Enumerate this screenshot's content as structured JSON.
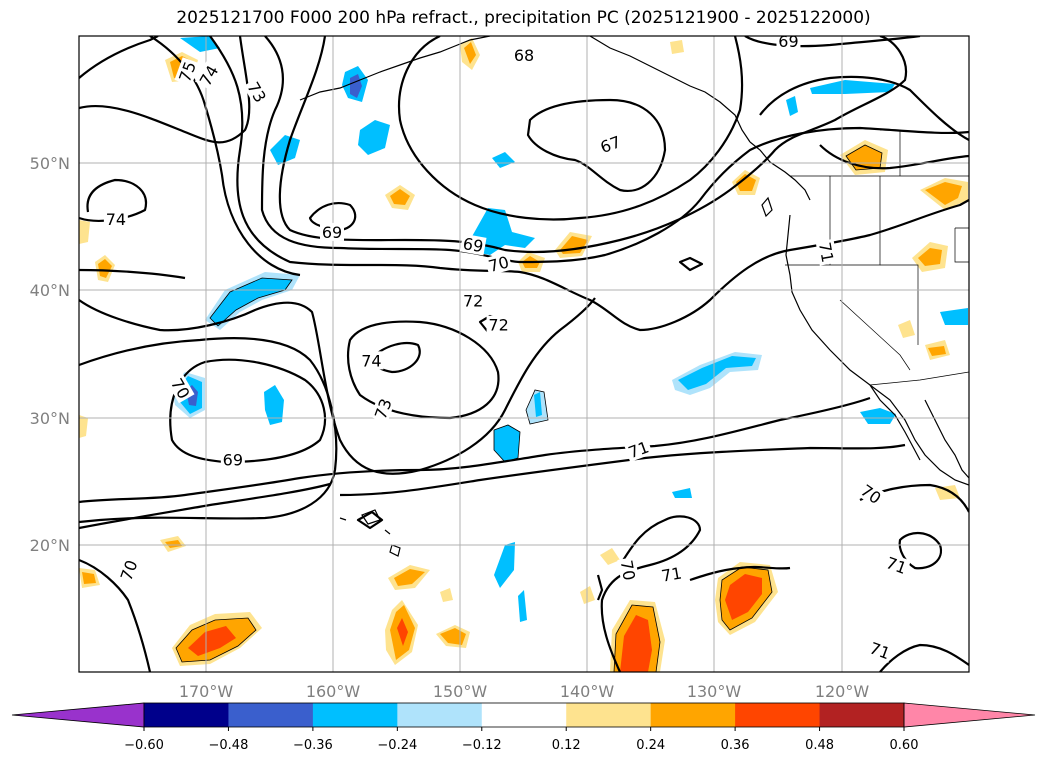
{
  "title": "2025121700 F000 200 hPa refract., precipitation PC (2025121900 - 2025122000)",
  "map": {
    "lon_range": [
      -180,
      -110
    ],
    "lat_range": [
      10,
      60
    ],
    "lat_ticks": [
      "50°N",
      "40°N",
      "30°N",
      "20°N"
    ],
    "lon_ticks": [
      "170°W",
      "160°W",
      "150°W",
      "140°W",
      "130°W",
      "120°W"
    ]
  },
  "contour_labels": [
    {
      "text": "75",
      "lon": -171.5,
      "lat": 57.2,
      "rot": 70
    },
    {
      "text": "74",
      "lon": -169.8,
      "lat": 56.9,
      "rot": 60
    },
    {
      "text": "73",
      "lon": -166.0,
      "lat": 55.6,
      "rot": -60
    },
    {
      "text": "74",
      "lon": -177.1,
      "lat": 45.6,
      "rot": 0
    },
    {
      "text": "69",
      "lon": -160.1,
      "lat": 44.6,
      "rot": 0
    },
    {
      "text": "68",
      "lon": -145.0,
      "lat": 58.5,
      "rot": 0
    },
    {
      "text": "67",
      "lon": -138.2,
      "lat": 51.5,
      "rot": 20
    },
    {
      "text": "69",
      "lon": -149.0,
      "lat": 43.6,
      "rot": -10
    },
    {
      "text": "70",
      "lon": -147.0,
      "lat": 42.1,
      "rot": 15
    },
    {
      "text": "72",
      "lon": -149.0,
      "lat": 39.2,
      "rot": 0
    },
    {
      "text": "72",
      "lon": -147.0,
      "lat": 37.3,
      "rot": 0
    },
    {
      "text": "74",
      "lon": -157.0,
      "lat": 34.5,
      "rot": 0
    },
    {
      "text": "73",
      "lon": -156.1,
      "lat": 30.7,
      "rot": 70
    },
    {
      "text": "70",
      "lon": -172.0,
      "lat": 32.3,
      "rot": -60
    },
    {
      "text": "69",
      "lon": -167.9,
      "lat": 26.7,
      "rot": 0
    },
    {
      "text": "71",
      "lon": -136.0,
      "lat": 27.5,
      "rot": 20
    },
    {
      "text": "70",
      "lon": -117.7,
      "lat": 24.0,
      "rot": -35
    },
    {
      "text": "70",
      "lon": -176.1,
      "lat": 18.0,
      "rot": 70
    },
    {
      "text": "70",
      "lon": -136.8,
      "lat": 18.0,
      "rot": -80
    },
    {
      "text": "71",
      "lon": -133.4,
      "lat": 17.7,
      "rot": 10
    },
    {
      "text": "71",
      "lon": -115.7,
      "lat": 18.4,
      "rot": -20
    },
    {
      "text": "71",
      "lon": -117.0,
      "lat": 11.7,
      "rot": -20
    },
    {
      "text": "69",
      "lon": -124.2,
      "lat": 59.6,
      "rot": 0
    },
    {
      "text": "71",
      "lon": -121.2,
      "lat": 43.0,
      "rot": -80
    }
  ],
  "colorbar": {
    "ticks": [
      "−0.60",
      "−0.48",
      "−0.36",
      "−0.24",
      "−0.12",
      "0.12",
      "0.24",
      "0.36",
      "0.48",
      "0.60"
    ],
    "colors": [
      "#9932cc",
      "#00008b",
      "#3a5fcd",
      "#00bfff",
      "#afe3fb",
      "#ffffff",
      "#fee38f",
      "#ffa500",
      "#ff4500",
      "#b22222",
      "#ff86a8"
    ]
  }
}
